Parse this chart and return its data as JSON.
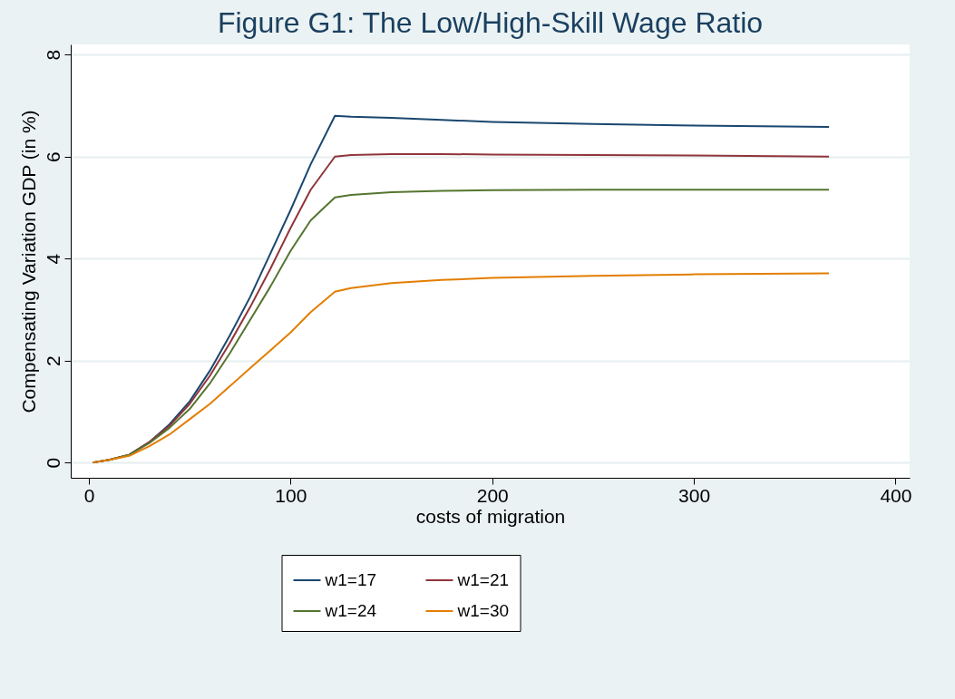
{
  "chart_data": {
    "type": "line",
    "title": "Figure G1: The Low/High-Skill Wage Ratio",
    "xlabel": "costs of migration",
    "ylabel": "Compensating Variation GDP (in %)",
    "x": [
      2,
      10,
      20,
      30,
      40,
      50,
      60,
      70,
      80,
      90,
      100,
      110,
      122,
      130,
      150,
      175,
      200,
      250,
      300,
      367
    ],
    "series": [
      {
        "name": "w1=17",
        "color": "#1a476f",
        "values": [
          0,
          0.05,
          0.15,
          0.4,
          0.75,
          1.2,
          1.8,
          2.5,
          3.25,
          4.1,
          4.95,
          5.85,
          6.8,
          6.78,
          6.76,
          6.72,
          6.68,
          6.64,
          6.61,
          6.58
        ]
      },
      {
        "name": "w1=21",
        "color": "#90353b",
        "values": [
          0,
          0.05,
          0.15,
          0.4,
          0.72,
          1.15,
          1.7,
          2.35,
          3.05,
          3.8,
          4.6,
          5.35,
          6.0,
          6.03,
          6.05,
          6.05,
          6.04,
          6.03,
          6.02,
          6.0
        ]
      },
      {
        "name": "w1=24",
        "color": "#55752f",
        "values": [
          0,
          0.05,
          0.15,
          0.38,
          0.68,
          1.05,
          1.55,
          2.15,
          2.8,
          3.45,
          4.15,
          4.75,
          5.2,
          5.25,
          5.3,
          5.33,
          5.34,
          5.35,
          5.35,
          5.35
        ]
      },
      {
        "name": "w1=30",
        "color": "#e37e00",
        "values": [
          0,
          0.05,
          0.13,
          0.32,
          0.55,
          0.85,
          1.15,
          1.5,
          1.85,
          2.2,
          2.55,
          2.95,
          3.35,
          3.42,
          3.52,
          3.58,
          3.62,
          3.66,
          3.69,
          3.71
        ]
      }
    ],
    "xlim": [
      -9,
      407
    ],
    "xticks": [
      0,
      100,
      200,
      300,
      400
    ],
    "ylim": [
      -0.3,
      8.2
    ],
    "yticks": [
      0,
      2,
      4,
      6,
      8
    ],
    "grid": "y",
    "legend": "bottom",
    "line_style": "solid",
    "marker": "none"
  }
}
